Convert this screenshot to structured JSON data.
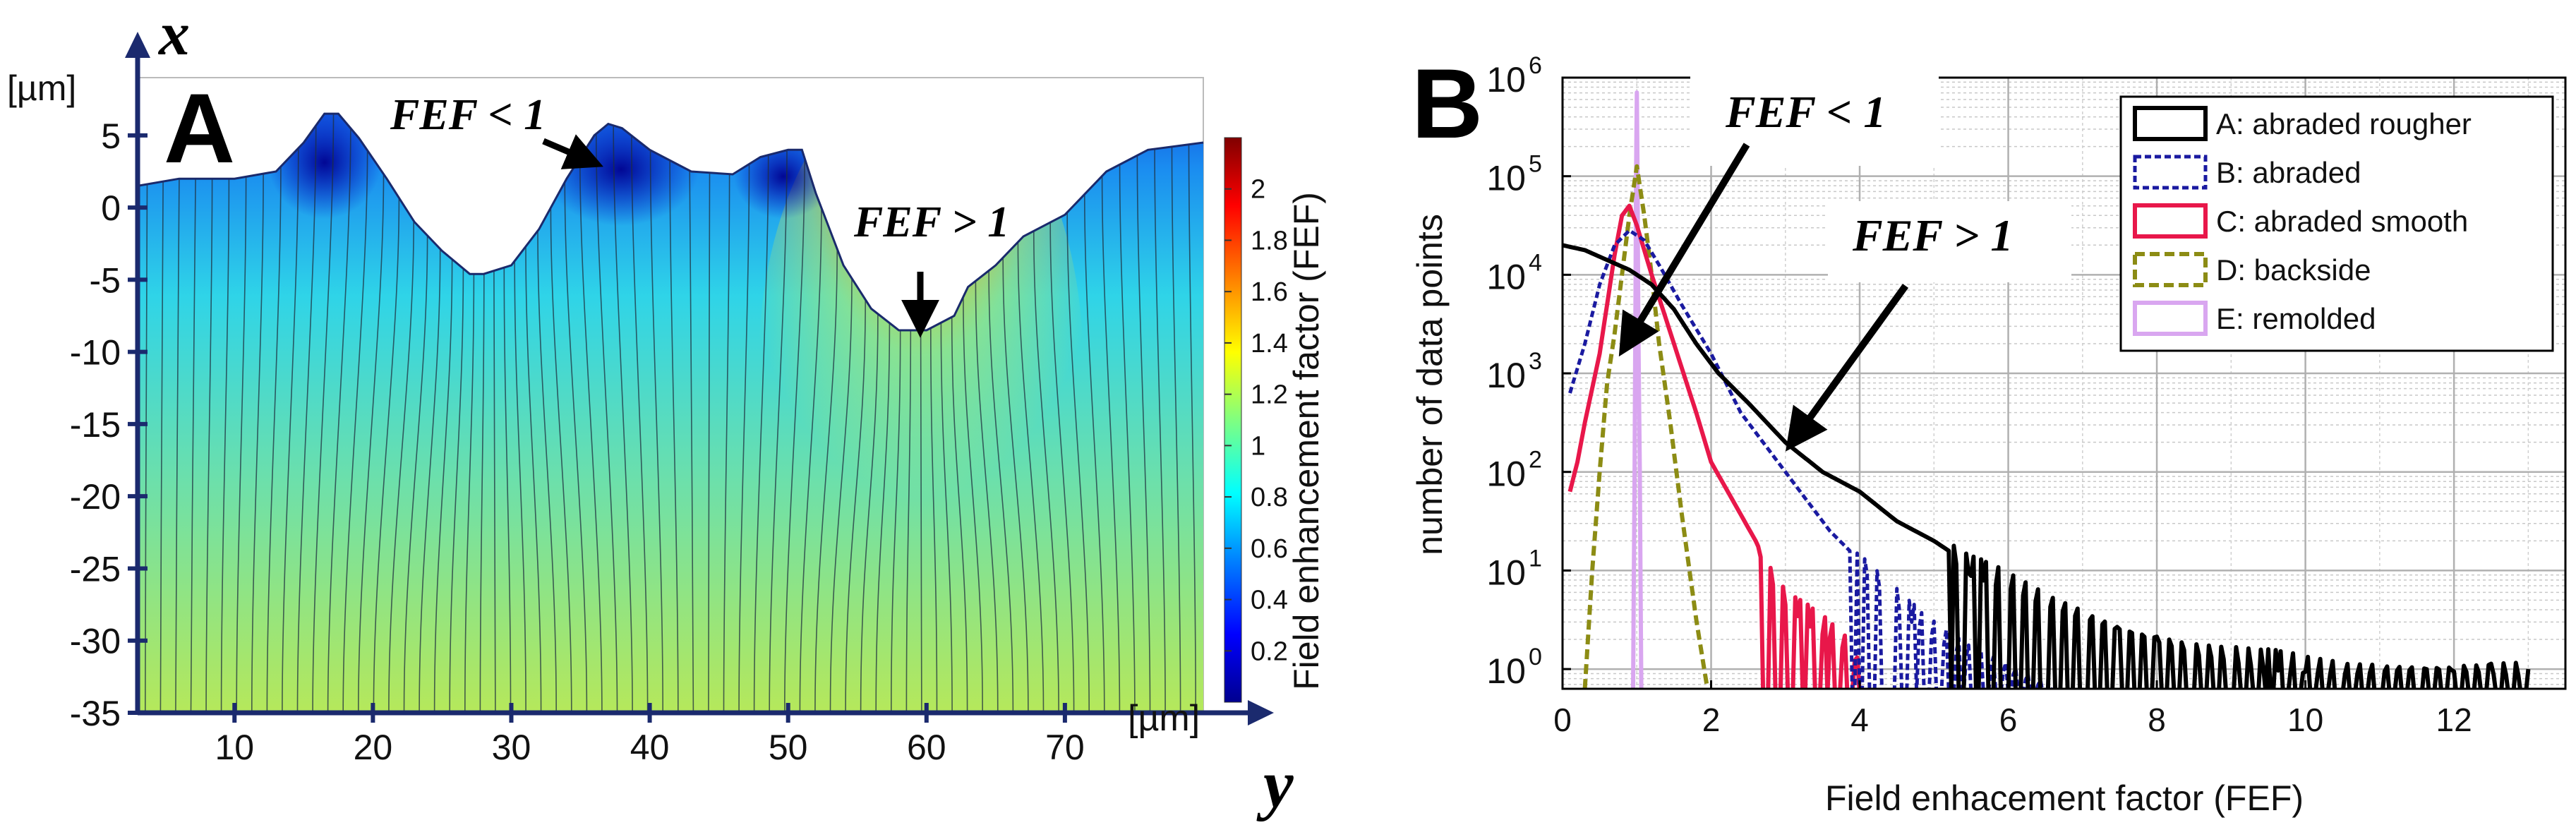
{
  "chart_data": [
    {
      "panel": "A",
      "type": "heatmap",
      "title": "",
      "x_axis_var": "y",
      "y_axis_var": "x",
      "xlabel_unit": "[µm]",
      "ylabel_unit": "[µm]",
      "xlim": [
        3,
        80
      ],
      "ylim": [
        -35,
        9
      ],
      "xticks": [
        10,
        20,
        30,
        40,
        50,
        60,
        70
      ],
      "yticks": [
        5,
        0,
        -5,
        -10,
        -15,
        -20,
        -25,
        -30,
        -35
      ],
      "surface_profile": {
        "y": [
          3,
          6,
          10,
          13,
          15,
          16.5,
          17.5,
          19,
          21,
          23,
          25,
          27,
          28,
          30,
          32,
          34,
          36,
          37,
          38,
          40,
          43,
          46,
          48,
          50,
          51,
          52,
          54,
          56,
          58,
          60,
          62,
          63,
          65,
          67,
          70,
          73,
          76,
          80
        ],
        "x": [
          1.5,
          2,
          2,
          2.5,
          4.5,
          6.5,
          6.5,
          4.8,
          2,
          -1,
          -3,
          -4.6,
          -4.6,
          -4,
          -1.5,
          2,
          5,
          5.8,
          5.5,
          4,
          2.5,
          2.3,
          3.5,
          4,
          4,
          1,
          -4,
          -7,
          -8.5,
          -8.5,
          -7.5,
          -5.5,
          -4,
          -2,
          -0.5,
          2.5,
          4,
          4.5
        ]
      },
      "colorbar": {
        "label": "Field enhancement factor (FEF)",
        "range": [
          0,
          2.2
        ],
        "ticks": [
          "2",
          "1.8",
          "1.6",
          "1.4",
          "1.2",
          "1",
          "0.8",
          "0.6",
          "0.4",
          "0.2"
        ],
        "colors": [
          "#00008f",
          "#0000ff",
          "#0080ff",
          "#00ffff",
          "#80ff80",
          "#ffff00",
          "#ff8000",
          "#ff0000",
          "#800000"
        ]
      },
      "annotations": [
        {
          "text": "FEF < 1",
          "y": 37.5,
          "x": 5.8
        },
        {
          "text": "FEF > 1",
          "y": 60,
          "x": -8.5
        }
      ],
      "panel_label": "A"
    },
    {
      "panel": "B",
      "type": "line",
      "title": "",
      "xlabel": "Field enhacement factor (FEF)",
      "ylabel": "number of data points",
      "xlim": [
        0,
        13.5
      ],
      "ylim_log10": [
        -0.2,
        6
      ],
      "xticks": [
        "0",
        "2",
        "4",
        "6",
        "8",
        "10",
        "12"
      ],
      "ytick_exponents": [
        "6",
        "5",
        "4",
        "3",
        "2",
        "1",
        "0"
      ],
      "ytick_base": "10",
      "legend_position": "top-right",
      "series": [
        {
          "name": "E: remolded",
          "color": "#d9a6f0",
          "x": [
            0.95,
            0.97,
            0.98,
            0.99,
            1.0,
            1.01,
            1.02,
            1.04,
            1.06
          ],
          "log10_count": [
            -0.2,
            2.0,
            3.5,
            5.0,
            5.85,
            5.0,
            3.5,
            2.0,
            -0.2
          ]
        },
        {
          "name": "D: backside",
          "color": "#8c8c14",
          "x": [
            0.3,
            0.4,
            0.5,
            0.6,
            0.7,
            0.8,
            0.9,
            1.0,
            1.1,
            1.2,
            1.3,
            1.45,
            1.6,
            1.8,
            1.95
          ],
          "log10_count": [
            -0.2,
            1.0,
            2.0,
            2.9,
            3.4,
            4.0,
            4.6,
            5.1,
            4.6,
            4.0,
            3.3,
            2.5,
            1.6,
            0.5,
            -0.2
          ]
        },
        {
          "name": "C: abraded smooth",
          "color": "#e8174a",
          "x": [
            0.1,
            0.2,
            0.3,
            0.5,
            0.7,
            0.8,
            0.9,
            1.0,
            1.2,
            1.5,
            1.8,
            2.0,
            2.3,
            2.6,
            2.9,
            3.2,
            3.6,
            3.9,
            4.1
          ],
          "log10_count": [
            1.8,
            2.1,
            2.5,
            3.2,
            4.2,
            4.6,
            4.7,
            4.5,
            4.0,
            3.3,
            2.6,
            2.1,
            1.7,
            1.3,
            0.8,
            0.6,
            0.4,
            0.2,
            -0.2
          ]
        },
        {
          "name": "B: abraded",
          "color": "#1a1aa0",
          "x": [
            0.1,
            0.3,
            0.5,
            0.7,
            0.9,
            1.1,
            1.3,
            1.6,
            2.0,
            2.4,
            2.8,
            3.2,
            3.6,
            4.0,
            4.4,
            4.8,
            5.4,
            6.0,
            6.6
          ],
          "log10_count": [
            2.8,
            3.3,
            3.9,
            4.3,
            4.45,
            4.35,
            4.1,
            3.7,
            3.2,
            2.6,
            2.2,
            1.8,
            1.4,
            1.1,
            0.8,
            0.5,
            0.2,
            0.0,
            -0.2
          ]
        },
        {
          "name": "A: abraded rougher",
          "color": "#000000",
          "x": [
            0.0,
            0.3,
            0.6,
            0.9,
            1.2,
            1.5,
            1.8,
            2.1,
            2.5,
            3.0,
            3.5,
            4.0,
            4.5,
            5.0,
            5.5,
            6.0,
            6.5,
            7.0,
            7.5,
            8.0,
            8.5,
            9.0,
            9.5,
            10.0,
            10.5,
            11.0,
            11.5,
            12.0,
            12.5,
            13.0
          ],
          "log10_count": [
            4.3,
            4.25,
            4.15,
            4.05,
            3.9,
            3.65,
            3.3,
            3.0,
            2.7,
            2.3,
            2.0,
            1.8,
            1.5,
            1.3,
            1.05,
            0.9,
            0.7,
            0.55,
            0.4,
            0.3,
            0.2,
            0.15,
            0.1,
            0.05,
            0.0,
            0.0,
            0.0,
            0.0,
            0.0,
            0.0
          ]
        }
      ],
      "annotations": [
        {
          "text": "FEF < 1",
          "points_to_x": 0.7,
          "points_to_log10": 3.3
        },
        {
          "text": "FEF > 1",
          "points_to_x": 3.1,
          "points_to_log10": 2.0
        }
      ],
      "panel_label": "B"
    }
  ]
}
